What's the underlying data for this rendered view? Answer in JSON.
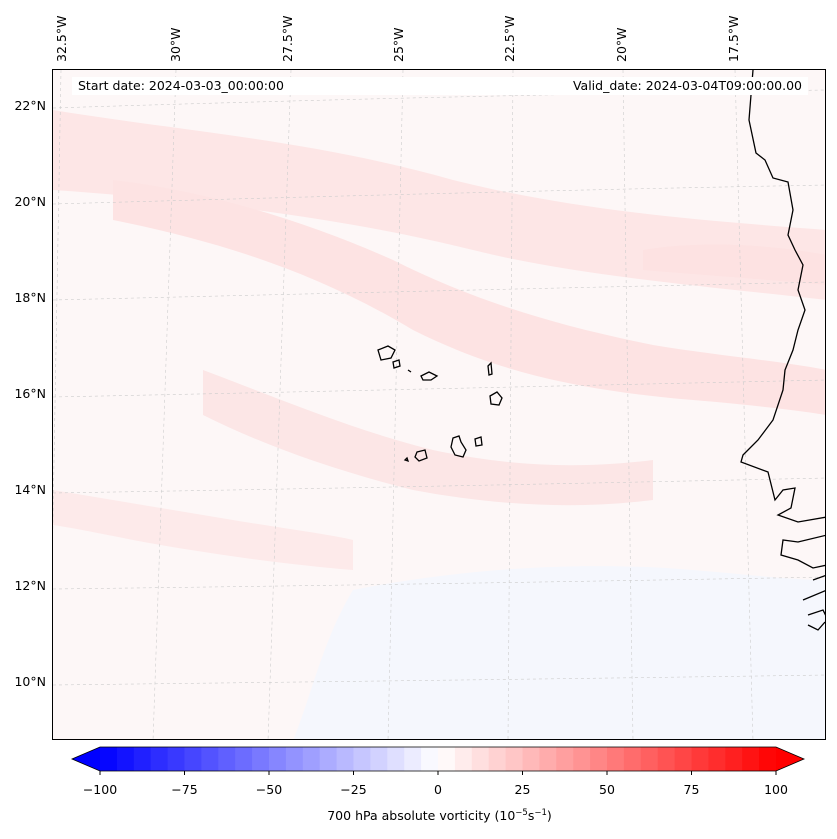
{
  "map": {
    "start_date": "Start date: 2024-03-03_00:00:00",
    "valid_date": "Valid_date: 2024-03-04T09:00:00.00",
    "longitude_labels": [
      "32.5°W",
      "30°W",
      "27.5°W",
      "25°W",
      "22.5°W",
      "20°W",
      "17.5°W"
    ],
    "latitude_labels": [
      "22°N",
      "20°N",
      "18°N",
      "16°N",
      "14°N",
      "12°N",
      "10°N"
    ],
    "colors": {
      "frame_bg": "#fdf7f7",
      "pink_band": "#fde3e3",
      "light_pink": "#fcecec",
      "pale_blue": "#f3f6fd",
      "coast": "#000000"
    }
  },
  "colorbar": {
    "label_prefix": "700 hPa absolute vorticity (10",
    "label_exp1": "−5",
    "label_mid": "s",
    "label_exp2": "−1",
    "label_suffix": ")",
    "ticks": [
      "−100",
      "−75",
      "−50",
      "−25",
      "0",
      "25",
      "50",
      "75",
      "100"
    ],
    "tick_values": [
      -100,
      -75,
      -50,
      -25,
      0,
      25,
      50,
      75,
      100
    ],
    "range": [
      -100,
      100
    ],
    "color_min": "#0000ff",
    "color_mid": "#ffffff",
    "color_max": "#ff0000"
  }
}
